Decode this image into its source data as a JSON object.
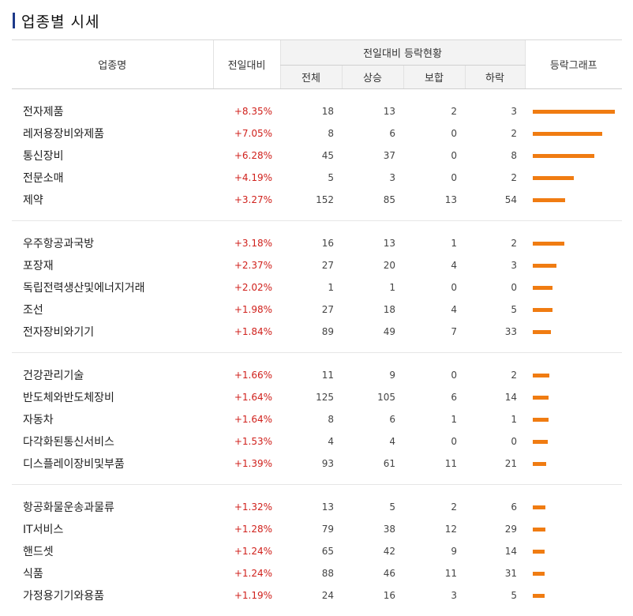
{
  "title": "업종별 시세",
  "header": {
    "sector": "업종명",
    "change": "전일대비",
    "status_group": "전일대비 등락현황",
    "total": "전체",
    "up": "상승",
    "flat": "보합",
    "down": "하락",
    "graph": "등락그래프"
  },
  "colors": {
    "rise_text": "#d0211c",
    "bar": "#f07c12",
    "title_mark": "#1e3a8a"
  },
  "groups": [
    {
      "rows": [
        {
          "name": "전자제품",
          "change": "+8.35%",
          "total": "18",
          "up": "13",
          "flat": "2",
          "down": "3",
          "level": 8.35
        },
        {
          "name": "레저용장비와제품",
          "change": "+7.05%",
          "total": "8",
          "up": "6",
          "flat": "0",
          "down": "2",
          "level": 7.05
        },
        {
          "name": "통신장비",
          "change": "+6.28%",
          "total": "45",
          "up": "37",
          "flat": "0",
          "down": "8",
          "level": 6.28
        },
        {
          "name": "전문소매",
          "change": "+4.19%",
          "total": "5",
          "up": "3",
          "flat": "0",
          "down": "2",
          "level": 4.19
        },
        {
          "name": "제약",
          "change": "+3.27%",
          "total": "152",
          "up": "85",
          "flat": "13",
          "down": "54",
          "level": 3.27
        }
      ]
    },
    {
      "rows": [
        {
          "name": "우주항공과국방",
          "change": "+3.18%",
          "total": "16",
          "up": "13",
          "flat": "1",
          "down": "2",
          "level": 3.18
        },
        {
          "name": "포장재",
          "change": "+2.37%",
          "total": "27",
          "up": "20",
          "flat": "4",
          "down": "3",
          "level": 2.37
        },
        {
          "name": "독립전력생산및에너지거래",
          "change": "+2.02%",
          "total": "1",
          "up": "1",
          "flat": "0",
          "down": "0",
          "level": 2.02
        },
        {
          "name": "조선",
          "change": "+1.98%",
          "total": "27",
          "up": "18",
          "flat": "4",
          "down": "5",
          "level": 1.98
        },
        {
          "name": "전자장비와기기",
          "change": "+1.84%",
          "total": "89",
          "up": "49",
          "flat": "7",
          "down": "33",
          "level": 1.84
        }
      ]
    },
    {
      "rows": [
        {
          "name": "건강관리기술",
          "change": "+1.66%",
          "total": "11",
          "up": "9",
          "flat": "0",
          "down": "2",
          "level": 1.66
        },
        {
          "name": "반도체와반도체장비",
          "change": "+1.64%",
          "total": "125",
          "up": "105",
          "flat": "6",
          "down": "14",
          "level": 1.64
        },
        {
          "name": "자동차",
          "change": "+1.64%",
          "total": "8",
          "up": "6",
          "flat": "1",
          "down": "1",
          "level": 1.64
        },
        {
          "name": "다각화된통신서비스",
          "change": "+1.53%",
          "total": "4",
          "up": "4",
          "flat": "0",
          "down": "0",
          "level": 1.53
        },
        {
          "name": "디스플레이장비및부품",
          "change": "+1.39%",
          "total": "93",
          "up": "61",
          "flat": "11",
          "down": "21",
          "level": 1.39
        }
      ]
    },
    {
      "rows": [
        {
          "name": "항공화물운송과물류",
          "change": "+1.32%",
          "total": "13",
          "up": "5",
          "flat": "2",
          "down": "6",
          "level": 1.32
        },
        {
          "name": "IT서비스",
          "change": "+1.28%",
          "total": "79",
          "up": "38",
          "flat": "12",
          "down": "29",
          "level": 1.28
        },
        {
          "name": "핸드셋",
          "change": "+1.24%",
          "total": "65",
          "up": "42",
          "flat": "9",
          "down": "14",
          "level": 1.24
        },
        {
          "name": "식품",
          "change": "+1.24%",
          "total": "88",
          "up": "46",
          "flat": "11",
          "down": "31",
          "level": 1.24
        },
        {
          "name": "가정용기기와용품",
          "change": "+1.19%",
          "total": "24",
          "up": "16",
          "flat": "3",
          "down": "5",
          "level": 1.19
        }
      ]
    }
  ]
}
